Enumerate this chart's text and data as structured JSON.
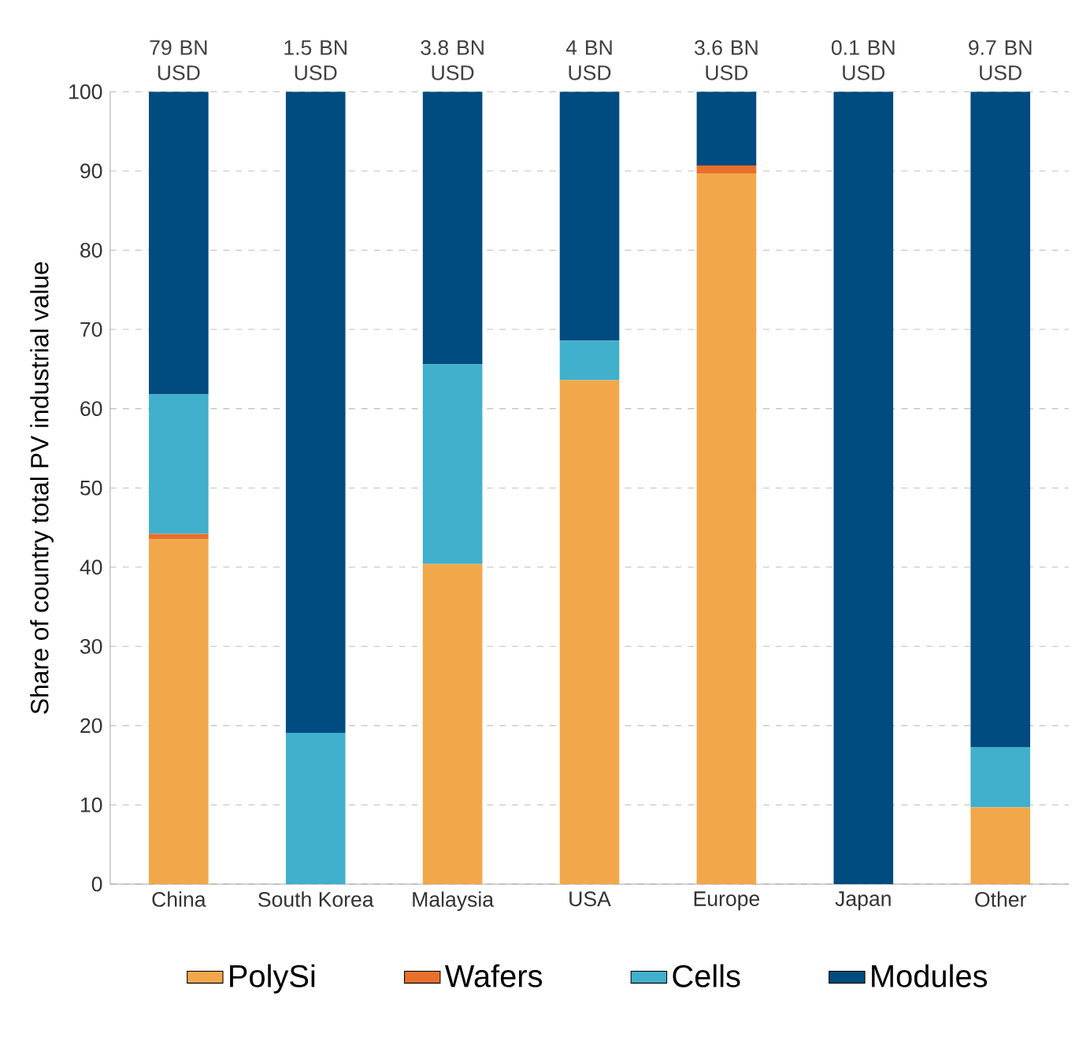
{
  "chart_data": {
    "type": "bar",
    "stacked": true,
    "ylabel": "Share of country total PV industrial value",
    "categories": [
      "China",
      "South Korea",
      "Malaysia",
      "USA",
      "Europe",
      "Japan",
      "Other"
    ],
    "series": [
      {
        "name": "PolySi",
        "color": "#f2a84a",
        "values": [
          43.5,
          0,
          40.4,
          63.6,
          89.7,
          0,
          9.7
        ]
      },
      {
        "name": "Wafers",
        "color": "#e8702a",
        "values": [
          0.7,
          0,
          0,
          0,
          1.0,
          0,
          0
        ]
      },
      {
        "name": "Cells",
        "color": "#40b0cc",
        "values": [
          17.6,
          19.1,
          25.2,
          5.0,
          0,
          0,
          7.6
        ]
      },
      {
        "name": "Modules",
        "color": "#004b80",
        "values": [
          38.2,
          80.9,
          34.4,
          31.4,
          9.3,
          100,
          82.7
        ]
      }
    ],
    "annotations": [
      {
        "text": "79 BN USD",
        "x": "China",
        "y": 100
      },
      {
        "text": "1.5 BN USD",
        "x": "South Korea",
        "y": 100
      },
      {
        "text": "3.8 BN USD",
        "x": "Malaysia",
        "y": 100
      },
      {
        "text": "4 BN USD",
        "x": "USA",
        "y": 100
      },
      {
        "text": "3.6 BN USD",
        "x": "Europe",
        "y": 100
      },
      {
        "text": "0.1 BN USD",
        "x": "Japan",
        "y": 100
      },
      {
        "text": "9.7 BN USD",
        "x": "Other",
        "y": 100
      }
    ],
    "ylim": [
      0,
      100
    ],
    "yticks": [
      0,
      10,
      20,
      30,
      40,
      50,
      60,
      70,
      80,
      90,
      100
    ],
    "grid": "y",
    "legend": "bottom"
  }
}
